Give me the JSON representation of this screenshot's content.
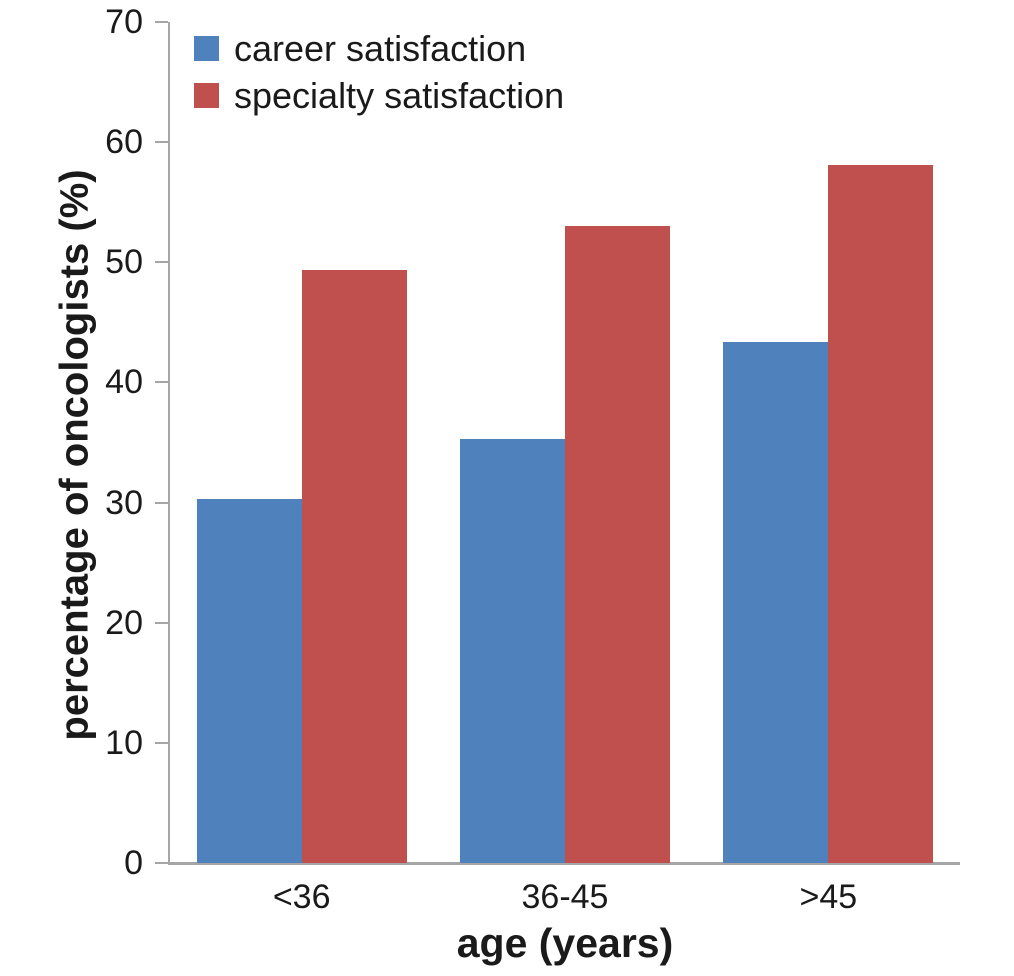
{
  "chart_data": {
    "type": "bar",
    "title": "",
    "categories": [
      "<36",
      "36-45",
      ">45"
    ],
    "series": [
      {
        "name": "career satisfaction",
        "color": "#4f81bd",
        "values": [
          30.3,
          35.3,
          43.4
        ]
      },
      {
        "name": "specialty satisfaction",
        "color": "#c0504d",
        "values": [
          49.4,
          53.0,
          58.1
        ]
      }
    ],
    "xlabel": "age (years)",
    "ylabel": "percentage of oncologists (%)",
    "ylim": [
      0,
      70
    ],
    "yticks": [
      0,
      10,
      20,
      30,
      40,
      50,
      60,
      70
    ],
    "grid": false,
    "legend_position": "top-left",
    "colors": {
      "axis": "#a6a6a6",
      "text": "#1a1a1a",
      "background": "#ffffff"
    }
  }
}
